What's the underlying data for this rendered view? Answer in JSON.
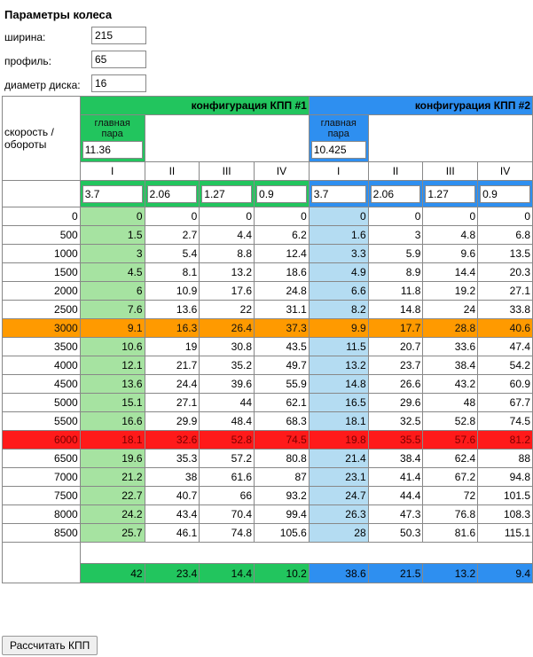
{
  "wheel": {
    "title": "Параметры колеса",
    "width_label": "ширина:",
    "width_value": "215",
    "profile_label": "профиль:",
    "profile_value": "65",
    "disc_label": "диаметр диска:",
    "disc_value": "16"
  },
  "table": {
    "corner_label": "скорость / обороты",
    "config1_label": "конфигурация КПП #1",
    "config2_label": "конфигурация КПП #2",
    "main_pair_label": "главная пара",
    "main_pair1": "11.36",
    "main_pair2": "10.425",
    "gear_labels": [
      "I",
      "II",
      "III",
      "IV"
    ],
    "gear_ratios1": [
      "3.7",
      "2.06",
      "1.27",
      "0.9"
    ],
    "gear_ratios2": [
      "3.7",
      "2.06",
      "1.27",
      "0.9"
    ],
    "rows": [
      {
        "rpm": "0",
        "v": [
          "0",
          "0",
          "0",
          "0",
          "0",
          "0",
          "0",
          "0"
        ]
      },
      {
        "rpm": "500",
        "v": [
          "1.5",
          "2.7",
          "4.4",
          "6.2",
          "1.6",
          "3",
          "4.8",
          "6.8"
        ]
      },
      {
        "rpm": "1000",
        "v": [
          "3",
          "5.4",
          "8.8",
          "12.4",
          "3.3",
          "5.9",
          "9.6",
          "13.5"
        ]
      },
      {
        "rpm": "1500",
        "v": [
          "4.5",
          "8.1",
          "13.2",
          "18.6",
          "4.9",
          "8.9",
          "14.4",
          "20.3"
        ]
      },
      {
        "rpm": "2000",
        "v": [
          "6",
          "10.9",
          "17.6",
          "24.8",
          "6.6",
          "11.8",
          "19.2",
          "27.1"
        ]
      },
      {
        "rpm": "2500",
        "v": [
          "7.6",
          "13.6",
          "22",
          "31.1",
          "8.2",
          "14.8",
          "24",
          "33.8"
        ]
      },
      {
        "rpm": "3000",
        "v": [
          "9.1",
          "16.3",
          "26.4",
          "37.3",
          "9.9",
          "17.7",
          "28.8",
          "40.6"
        ],
        "hl": "orange"
      },
      {
        "rpm": "3500",
        "v": [
          "10.6",
          "19",
          "30.8",
          "43.5",
          "11.5",
          "20.7",
          "33.6",
          "47.4"
        ]
      },
      {
        "rpm": "4000",
        "v": [
          "12.1",
          "21.7",
          "35.2",
          "49.7",
          "13.2",
          "23.7",
          "38.4",
          "54.2"
        ]
      },
      {
        "rpm": "4500",
        "v": [
          "13.6",
          "24.4",
          "39.6",
          "55.9",
          "14.8",
          "26.6",
          "43.2",
          "60.9"
        ]
      },
      {
        "rpm": "5000",
        "v": [
          "15.1",
          "27.1",
          "44",
          "62.1",
          "16.5",
          "29.6",
          "48",
          "67.7"
        ]
      },
      {
        "rpm": "5500",
        "v": [
          "16.6",
          "29.9",
          "48.4",
          "68.3",
          "18.1",
          "32.5",
          "52.8",
          "74.5"
        ]
      },
      {
        "rpm": "6000",
        "v": [
          "18.1",
          "32.6",
          "52.8",
          "74.5",
          "19.8",
          "35.5",
          "57.6",
          "81.2"
        ],
        "hl": "red"
      },
      {
        "rpm": "6500",
        "v": [
          "19.6",
          "35.3",
          "57.2",
          "80.8",
          "21.4",
          "38.4",
          "62.4",
          "88"
        ]
      },
      {
        "rpm": "7000",
        "v": [
          "21.2",
          "38",
          "61.6",
          "87",
          "23.1",
          "41.4",
          "67.2",
          "94.8"
        ]
      },
      {
        "rpm": "7500",
        "v": [
          "22.7",
          "40.7",
          "66",
          "93.2",
          "24.7",
          "44.4",
          "72",
          "101.5"
        ]
      },
      {
        "rpm": "8000",
        "v": [
          "24.2",
          "43.4",
          "70.4",
          "99.4",
          "26.3",
          "47.3",
          "76.8",
          "108.3"
        ]
      },
      {
        "rpm": "8500",
        "v": [
          "25.7",
          "46.1",
          "74.8",
          "105.6",
          "28",
          "50.3",
          "81.6",
          "115.1"
        ]
      }
    ],
    "totals": [
      "42",
      "23.4",
      "14.4",
      "10.2",
      "38.6",
      "21.5",
      "13.2",
      "9.4"
    ]
  },
  "calc_button": "Рассчитать КПП",
  "colors": {
    "green": "#22c55e",
    "blue": "#2e8ff0",
    "light_green": "#a6e3a1",
    "light_blue": "#b4dcf2",
    "red": "#ff1a1a",
    "orange": "#ff9a00"
  }
}
